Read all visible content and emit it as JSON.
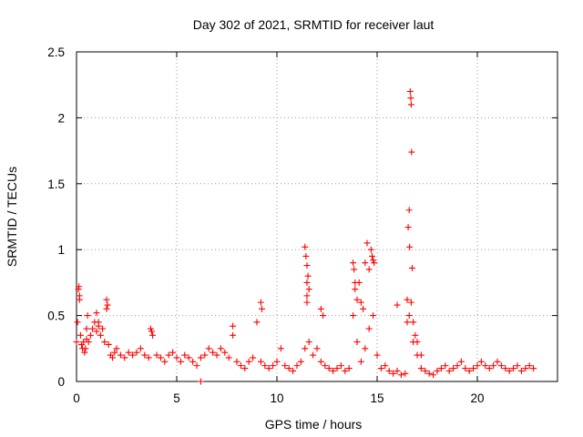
{
  "chart_data": {
    "type": "scatter",
    "title": "Day 302 of 2021, SRMTID for receiver laut",
    "xlabel": "GPS time / hours",
    "ylabel": "SRMTID / TECUs",
    "xlim": [
      0,
      24
    ],
    "ylim": [
      0,
      2.5
    ],
    "x_ticks": [
      0,
      5,
      10,
      15,
      20
    ],
    "y_ticks": [
      0,
      0.5,
      1,
      1.5,
      2,
      2.5
    ],
    "x_tick_labels": [
      "0",
      "5",
      "10",
      "15",
      "20"
    ],
    "y_tick_labels": [
      "0",
      "0.5",
      "1",
      "1.5",
      "2",
      "2.5"
    ],
    "grid": true,
    "marker": "plus",
    "series_color": "#ff0000",
    "series": [
      {
        "name": "SRMTID",
        "x": [
          0.0,
          0.05,
          0.1,
          0.15,
          0.2,
          0.25,
          0.3,
          0.35,
          0.4,
          0.45,
          0.5,
          0.6,
          0.7,
          0.8,
          0.9,
          1.0,
          1.1,
          1.2,
          1.3,
          1.4,
          1.5,
          1.6,
          1.7,
          1.8,
          1.9,
          2.0,
          2.2,
          2.4,
          2.6,
          2.8,
          3.0,
          3.2,
          3.4,
          3.6,
          3.8,
          4.0,
          4.2,
          4.4,
          4.6,
          4.8,
          5.0,
          5.2,
          5.4,
          5.6,
          5.8,
          6.0,
          6.2,
          6.4,
          6.6,
          6.8,
          7.0,
          7.2,
          7.4,
          7.6,
          7.8,
          8.0,
          8.2,
          8.4,
          8.6,
          8.8,
          9.0,
          9.2,
          9.4,
          9.6,
          9.8,
          10.0,
          10.2,
          10.4,
          10.6,
          10.8,
          11.0,
          11.2,
          11.4,
          11.5,
          11.6,
          11.8,
          12.0,
          12.2,
          12.4,
          12.6,
          12.8,
          13.0,
          13.2,
          13.4,
          13.6,
          13.8,
          13.9,
          14.0,
          14.2,
          14.4,
          14.6,
          14.8,
          15.0,
          15.2,
          15.4,
          15.6,
          15.8,
          16.0,
          16.2,
          16.4,
          16.5,
          16.6,
          16.7,
          16.8,
          17.0,
          17.2,
          17.4,
          17.6,
          17.8,
          18.0,
          18.2,
          18.4,
          18.6,
          18.8,
          19.0,
          19.2,
          19.4,
          19.6,
          19.8,
          20.0,
          20.2,
          20.4,
          20.6,
          20.8,
          21.0,
          21.2,
          21.4,
          21.6,
          21.8,
          22.0,
          22.2,
          22.4,
          22.6,
          22.8,
          0.12,
          0.15,
          0.5,
          0.55,
          1.0,
          1.1,
          1.5,
          1.55,
          3.7,
          3.75,
          6.2,
          7.8,
          9.2,
          9.25,
          11.4,
          11.45,
          11.5,
          11.55,
          11.5,
          11.6,
          11.5,
          12.2,
          12.3,
          13.8,
          13.85,
          13.9,
          14.0,
          14.2,
          14.4,
          14.5,
          14.6,
          14.7,
          14.75,
          14.8,
          14.85,
          14.1,
          14.3,
          16.0,
          16.5,
          16.55,
          16.6,
          16.62,
          16.65,
          16.68,
          16.7,
          16.72,
          16.75,
          16.8,
          16.9,
          17.0,
          17.2
        ],
        "y": [
          0.3,
          0.45,
          0.7,
          0.62,
          0.35,
          0.28,
          0.25,
          0.3,
          0.22,
          0.25,
          0.32,
          0.3,
          0.35,
          0.4,
          0.45,
          0.38,
          0.42,
          0.35,
          0.4,
          0.3,
          0.55,
          0.28,
          0.2,
          0.18,
          0.22,
          0.25,
          0.2,
          0.18,
          0.22,
          0.2,
          0.22,
          0.25,
          0.2,
          0.18,
          0.35,
          0.2,
          0.18,
          0.15,
          0.2,
          0.22,
          0.18,
          0.15,
          0.2,
          0.18,
          0.15,
          0.12,
          0.18,
          0.2,
          0.25,
          0.22,
          0.2,
          0.25,
          0.22,
          0.18,
          0.35,
          0.15,
          0.12,
          0.1,
          0.15,
          0.18,
          0.45,
          0.15,
          0.12,
          0.1,
          0.12,
          0.15,
          0.25,
          0.12,
          0.1,
          0.08,
          0.12,
          0.15,
          0.25,
          0.6,
          0.3,
          0.2,
          0.25,
          0.15,
          0.12,
          0.1,
          0.08,
          0.1,
          0.12,
          0.08,
          0.1,
          0.5,
          0.7,
          0.3,
          0.15,
          0.25,
          0.4,
          0.5,
          0.2,
          0.1,
          0.12,
          0.08,
          0.06,
          0.08,
          0.05,
          0.06,
          0.45,
          0.5,
          0.6,
          0.3,
          0.2,
          0.1,
          0.08,
          0.06,
          0.05,
          0.08,
          0.1,
          0.12,
          0.08,
          0.1,
          0.12,
          0.15,
          0.1,
          0.08,
          0.1,
          0.12,
          0.15,
          0.12,
          0.1,
          0.12,
          0.15,
          0.12,
          0.1,
          0.08,
          0.1,
          0.12,
          0.08,
          0.1,
          0.12,
          0.1,
          0.72,
          0.65,
          0.4,
          0.5,
          0.52,
          0.45,
          0.62,
          0.58,
          0.4,
          0.38,
          0.0,
          0.42,
          0.6,
          0.55,
          1.02,
          0.95,
          0.88,
          0.8,
          0.75,
          0.7,
          0.65,
          0.55,
          0.5,
          0.9,
          0.85,
          0.75,
          0.62,
          0.6,
          0.9,
          1.05,
          0.85,
          1.0,
          0.95,
          0.92,
          0.9,
          0.75,
          0.55,
          0.58,
          0.62,
          1.17,
          1.3,
          1.02,
          2.2,
          2.15,
          2.1,
          1.74,
          0.86,
          0.45,
          0.35,
          0.3,
          0.2
        ]
      }
    ]
  }
}
